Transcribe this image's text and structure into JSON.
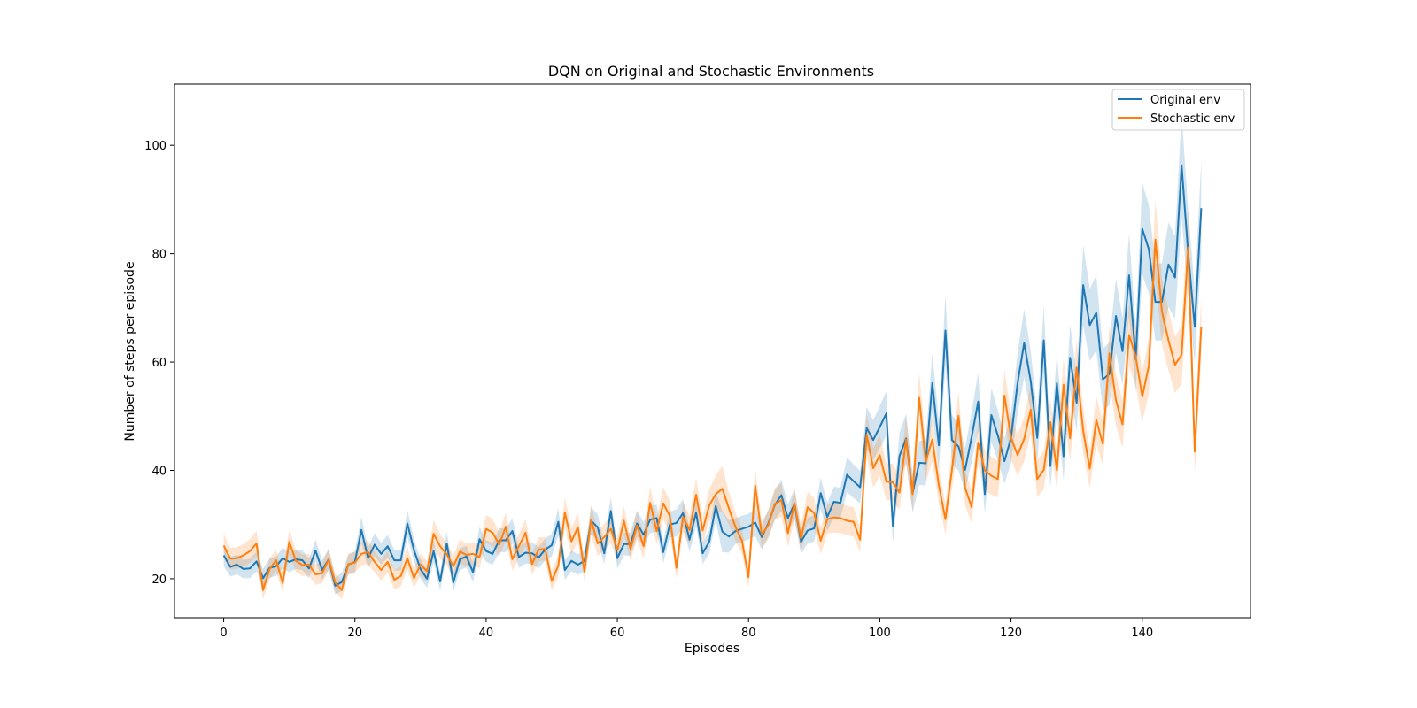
{
  "chart_data": {
    "type": "line",
    "title": "DQN on Original and Stochastic Environments",
    "xlabel": "Episodes",
    "ylabel": "Number of steps per episode",
    "xlim": [
      -7.5,
      156.5
    ],
    "ylim": [
      12.8,
      111.3
    ],
    "xticks": [
      0,
      20,
      40,
      60,
      80,
      100,
      120,
      140
    ],
    "yticks": [
      20,
      40,
      60,
      80,
      100
    ],
    "grid": false,
    "legend_position": "top-right",
    "series": [
      {
        "name": "Original env",
        "color": "#1f77b4",
        "band_opacity": 0.2,
        "values": [
          24.3,
          22.2,
          22.6,
          21.8,
          21.9,
          23.2,
          20.1,
          22.0,
          22.3,
          23.8,
          23.1,
          23.6,
          23.4,
          21.9,
          25.2,
          21.6,
          23.6,
          18.7,
          19.4,
          22.6,
          23.1,
          29.0,
          23.8,
          26.3,
          24.6,
          26.0,
          23.4,
          23.4,
          30.2,
          25.3,
          21.8,
          20.0,
          25.1,
          19.5,
          26.5,
          19.3,
          23.6,
          24.1,
          21.2,
          27.3,
          25.1,
          24.6,
          27.1,
          27.1,
          28.8,
          24.0,
          24.8,
          24.7,
          23.9,
          25.4,
          26.2,
          30.5,
          21.6,
          23.3,
          22.6,
          23.3,
          30.7,
          29.5,
          24.7,
          32.5,
          23.8,
          26.4,
          26.4,
          30.2,
          28.1,
          30.9,
          31.2,
          24.9,
          30.0,
          30.3,
          32.1,
          27.2,
          32.2,
          24.7,
          26.8,
          33.4,
          28.7,
          27.8,
          28.8,
          29.2,
          29.6,
          30.4,
          27.7,
          30.2,
          33.6,
          35.4,
          31.2,
          33.8,
          26.8,
          28.9,
          29.3,
          35.8,
          31.4,
          34.2,
          34.0,
          39.2,
          38.0,
          36.9,
          47.8,
          45.6,
          48.0,
          50.5,
          29.7,
          42.6,
          45.9,
          35.8,
          41.4,
          41.3,
          56.1,
          44.6,
          65.8,
          45.6,
          44.4,
          40.1,
          46.1,
          52.7,
          35.6,
          50.2,
          46.4,
          41.7,
          46.0,
          56.1,
          63.5,
          56.5,
          46.0,
          64.0,
          40.8,
          56.1,
          42.6,
          60.8,
          52.5,
          74.2,
          66.8,
          69.1,
          56.8,
          57.8,
          68.5,
          62.0,
          76.0,
          60.5,
          84.6,
          80.8,
          71.1,
          71.1,
          78.0,
          75.6,
          96.3,
          80.1,
          66.5,
          88.4
        ],
        "band_half_width": [
          2.0,
          1.8,
          1.8,
          1.7,
          1.8,
          1.8,
          1.7,
          1.8,
          1.8,
          1.9,
          1.9,
          1.8,
          1.8,
          1.8,
          2.0,
          1.8,
          1.9,
          1.6,
          1.7,
          1.8,
          1.9,
          2.4,
          1.9,
          2.1,
          2.0,
          2.1,
          1.9,
          1.9,
          2.5,
          2.0,
          1.8,
          1.7,
          2.1,
          1.7,
          2.2,
          1.7,
          2.0,
          2.0,
          1.8,
          2.2,
          2.0,
          2.0,
          2.2,
          2.2,
          2.3,
          2.0,
          2.0,
          2.0,
          2.0,
          2.0,
          2.1,
          2.5,
          1.8,
          1.9,
          1.9,
          1.9,
          2.5,
          2.4,
          2.0,
          2.6,
          1.9,
          2.1,
          2.1,
          2.4,
          2.3,
          2.5,
          2.5,
          2.0,
          2.4,
          2.5,
          2.6,
          2.2,
          2.6,
          2.0,
          2.2,
          2.7,
          3.8,
          3.0,
          2.4,
          2.4,
          2.4,
          2.5,
          2.3,
          2.5,
          2.7,
          2.9,
          2.5,
          2.7,
          2.2,
          2.4,
          2.4,
          2.9,
          2.6,
          2.8,
          2.8,
          3.2,
          3.1,
          3.0,
          3.9,
          3.7,
          3.9,
          4.1,
          3.0,
          4.3,
          4.6,
          3.6,
          4.1,
          4.1,
          5.6,
          4.5,
          6.6,
          4.6,
          4.4,
          4.0,
          4.6,
          5.3,
          3.6,
          5.0,
          4.6,
          4.2,
          4.6,
          5.6,
          6.3,
          5.6,
          4.6,
          6.4,
          4.1,
          5.6,
          4.3,
          6.1,
          5.3,
          7.4,
          6.7,
          6.9,
          5.7,
          5.8,
          6.9,
          6.2,
          7.6,
          6.1,
          8.5,
          8.1,
          7.1,
          7.1,
          7.8,
          7.6,
          9.6,
          8.0,
          6.7,
          8.8
        ]
      },
      {
        "name": "Stochastic env",
        "color": "#ff7f0e",
        "band_opacity": 0.2,
        "values": [
          26.1,
          23.7,
          23.8,
          24.3,
          25.1,
          26.5,
          17.9,
          21.8,
          23.4,
          19.2,
          26.8,
          23.3,
          22.5,
          22.6,
          20.8,
          21.0,
          23.6,
          19.3,
          17.9,
          22.7,
          23.0,
          24.6,
          24.9,
          23.1,
          21.6,
          23.1,
          19.8,
          20.5,
          23.8,
          20.1,
          22.6,
          21.4,
          28.3,
          26.0,
          24.5,
          22.3,
          25.0,
          24.4,
          24.6,
          24.0,
          29.2,
          28.5,
          26.3,
          29.6,
          23.6,
          26.0,
          28.5,
          22.7,
          25.4,
          25.5,
          19.6,
          22.4,
          32.2,
          26.9,
          29.5,
          21.3,
          30.9,
          26.5,
          27.7,
          29.2,
          25.3,
          30.7,
          25.5,
          29.8,
          26.0,
          34.0,
          28.8,
          33.9,
          31.6,
          22.0,
          31.4,
          29.0,
          35.5,
          28.9,
          33.5,
          35.6,
          36.6,
          33.0,
          29.6,
          27.0,
          20.3,
          37.2,
          28.1,
          29.9,
          33.8,
          34.5,
          28.4,
          33.9,
          27.4,
          33.2,
          32.1,
          27.0,
          31.0,
          31.3,
          31.2,
          30.7,
          30.5,
          27.2,
          46.6,
          40.4,
          42.8,
          37.9,
          37.8,
          35.9,
          45.7,
          35.6,
          53.4,
          41.6,
          45.7,
          37.2,
          31.0,
          40.1,
          50.1,
          36.8,
          33.2,
          45.1,
          40.0,
          39.0,
          38.4,
          53.8,
          46.0,
          42.8,
          45.8,
          51.2,
          38.4,
          40.1,
          48.9,
          40.0,
          55.8,
          45.9,
          59.0,
          47.3,
          40.3,
          49.3,
          44.9,
          61.6,
          52.9,
          48.5,
          65.0,
          61.0,
          53.6,
          59.3,
          82.6,
          69.3,
          64.0,
          59.5,
          61.3,
          81.2,
          43.5,
          66.5
        ],
        "band_half_width": [
          2.2,
          2.0,
          2.0,
          2.1,
          2.2,
          2.4,
          1.7,
          1.9,
          2.0,
          1.8,
          2.3,
          2.0,
          2.0,
          2.0,
          1.9,
          1.9,
          2.0,
          1.8,
          1.7,
          2.0,
          2.0,
          2.1,
          2.2,
          2.0,
          1.9,
          2.0,
          1.8,
          1.9,
          2.1,
          1.8,
          2.0,
          1.9,
          2.5,
          2.3,
          2.1,
          2.0,
          2.2,
          2.1,
          2.1,
          2.1,
          2.6,
          2.5,
          2.3,
          2.6,
          2.1,
          2.3,
          2.5,
          2.0,
          2.2,
          2.2,
          1.8,
          2.0,
          2.8,
          2.4,
          2.6,
          1.9,
          2.7,
          2.3,
          2.4,
          2.6,
          2.2,
          2.7,
          2.2,
          2.6,
          2.3,
          3.0,
          2.5,
          3.0,
          2.8,
          2.0,
          2.8,
          2.6,
          3.1,
          2.5,
          3.0,
          3.5,
          4.2,
          3.0,
          2.6,
          2.4,
          2.0,
          3.3,
          2.5,
          2.6,
          3.0,
          3.1,
          2.5,
          3.0,
          2.4,
          2.9,
          2.8,
          2.4,
          2.7,
          2.8,
          2.8,
          2.7,
          2.7,
          2.4,
          4.1,
          3.6,
          3.8,
          3.4,
          3.4,
          3.2,
          4.1,
          3.2,
          4.7,
          3.7,
          4.1,
          3.3,
          2.8,
          3.6,
          4.4,
          3.3,
          3.0,
          4.0,
          3.6,
          3.5,
          3.4,
          4.8,
          4.1,
          3.8,
          4.1,
          4.5,
          3.4,
          3.6,
          4.3,
          3.6,
          4.9,
          4.1,
          5.2,
          4.2,
          3.6,
          4.4,
          4.0,
          5.4,
          4.7,
          4.3,
          5.7,
          5.4,
          4.7,
          5.2,
          7.3,
          6.1,
          5.6,
          5.2,
          5.4,
          7.1,
          3.8,
          5.9
        ]
      }
    ]
  }
}
